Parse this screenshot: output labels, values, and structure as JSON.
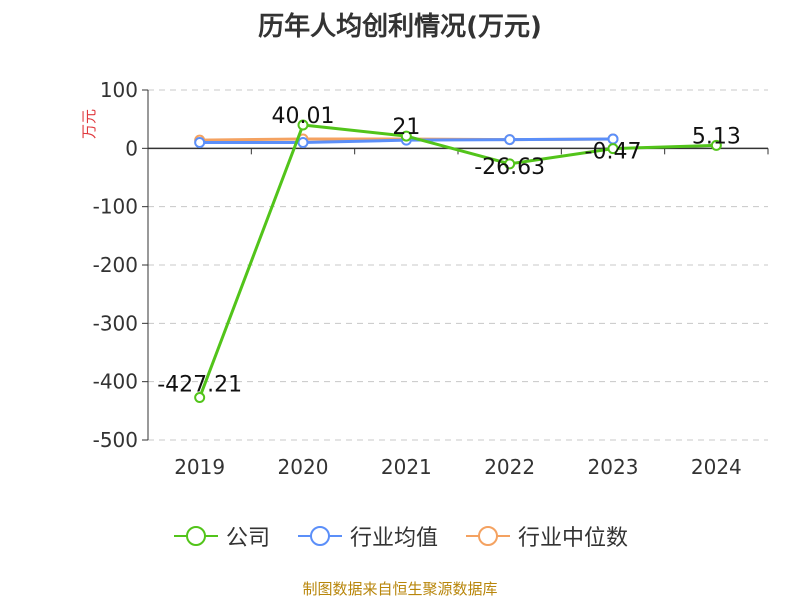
{
  "chart_data": {
    "type": "line",
    "title": "历年人均创利情况(万元)",
    "ylabel": "万元",
    "categories": [
      "2019",
      "2020",
      "2021",
      "2022",
      "2023",
      "2024"
    ],
    "ylim": [
      -500,
      100
    ],
    "yticks": [
      100,
      0,
      -100,
      -200,
      -300,
      -400,
      -500
    ],
    "grid": true,
    "legend_position": "bottom",
    "series": [
      {
        "name": "公司",
        "color": "#52c41a",
        "values": [
          -427.21,
          40.01,
          21,
          -26.63,
          -0.47,
          5.13
        ],
        "labels": [
          "-427.21",
          "40.01",
          "21",
          "-26.63",
          "-0.47",
          "5.13"
        ]
      },
      {
        "name": "行业均值",
        "color": "#5b8ff9",
        "values": [
          10,
          10,
          14,
          15,
          16,
          null
        ]
      },
      {
        "name": "行业中位数",
        "color": "#f4a261",
        "values": [
          14,
          16,
          16,
          15,
          16,
          null
        ]
      }
    ]
  },
  "footer": {
    "source": "制图数据来自恒生聚源数据库"
  }
}
